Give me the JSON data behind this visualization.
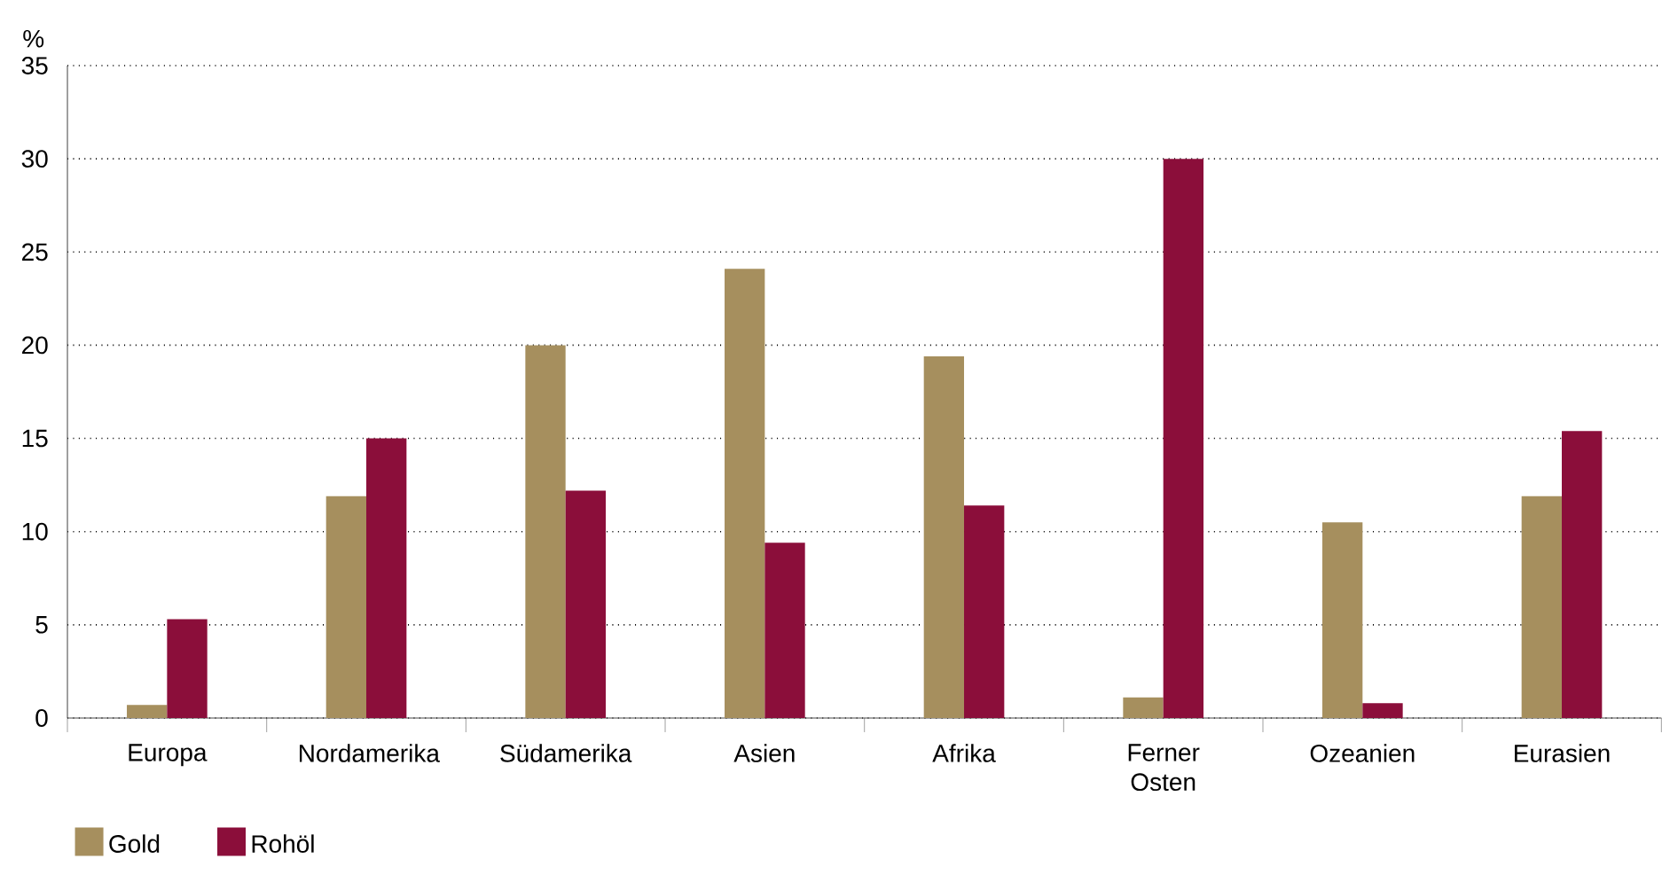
{
  "chart_data": {
    "type": "bar",
    "ylabel": "%",
    "categories": [
      "Europa",
      "Nordamerika",
      "Südamerika",
      "Asien",
      "Afrika",
      "Ferner Osten",
      "Ozeanien",
      "Eurasien"
    ],
    "series": [
      {
        "name": "Gold",
        "color": "#a68f5e",
        "values": [
          0.7,
          11.9,
          20.0,
          24.1,
          19.4,
          1.1,
          10.5,
          11.9
        ]
      },
      {
        "name": "Rohöl",
        "color": "#8b0e3a",
        "values": [
          5.3,
          15.0,
          12.2,
          9.4,
          11.4,
          30.0,
          0.8,
          15.4
        ]
      }
    ],
    "ylim": [
      0,
      35
    ],
    "yticks": [
      0,
      5,
      10,
      15,
      20,
      25,
      30,
      35
    ],
    "grid": "y",
    "legend": "bottom left"
  }
}
